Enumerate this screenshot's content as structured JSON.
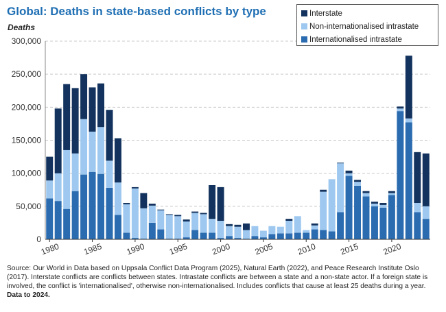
{
  "chart_data": {
    "type": "bar",
    "stacked": true,
    "title": "Global: Deaths in state-based conflicts by type",
    "ylabel": "Deaths",
    "xlabel": "",
    "ylim": [
      0,
      300000
    ],
    "yticks": [
      0,
      50000,
      100000,
      150000,
      200000,
      250000,
      300000
    ],
    "ytick_labels": [
      "0",
      "50,000",
      "100,000",
      "150,000",
      "200,000",
      "250,000",
      "300,000"
    ],
    "xticks": [
      1980,
      1985,
      1990,
      1995,
      2000,
      2005,
      2010,
      2015,
      2020
    ],
    "xtick_labels": [
      "1980",
      "1985",
      "1990",
      "1995",
      "2000",
      "2005",
      "2010",
      "2015",
      "2020"
    ],
    "legend_position": "top-right",
    "categories": [
      1980,
      1981,
      1982,
      1983,
      1984,
      1985,
      1986,
      1987,
      1988,
      1989,
      1990,
      1991,
      1992,
      1993,
      1994,
      1995,
      1996,
      1997,
      1998,
      1999,
      2000,
      2001,
      2002,
      2003,
      2004,
      2005,
      2006,
      2007,
      2008,
      2009,
      2010,
      2011,
      2012,
      2013,
      2014,
      2015,
      2016,
      2017,
      2018,
      2019,
      2020,
      2021,
      2022,
      2023,
      2024
    ],
    "series": [
      {
        "name": "Internationalised intrastate",
        "color": "#2b6cb0",
        "values": [
          62000,
          58000,
          46000,
          73000,
          98000,
          102000,
          99000,
          78000,
          37000,
          10000,
          2000,
          1000,
          25000,
          15000,
          1000,
          1000,
          3000,
          14000,
          10000,
          10000,
          2000,
          5000,
          2000,
          1000,
          5000,
          3000,
          8000,
          9000,
          9000,
          10000,
          10000,
          15000,
          14000,
          12000,
          41000,
          96000,
          81000,
          65000,
          50000,
          48000,
          67000,
          194000,
          177000,
          41000,
          31000
        ]
      },
      {
        "name": "Non-internationalised intrastate",
        "color": "#9ec8ef",
        "values": [
          27000,
          42000,
          89000,
          57000,
          84000,
          61000,
          71000,
          41000,
          49000,
          43000,
          75000,
          46000,
          26000,
          29000,
          36000,
          34000,
          24000,
          26000,
          28000,
          21000,
          26000,
          15000,
          17000,
          13000,
          15000,
          10000,
          12000,
          10000,
          19000,
          25000,
          4000,
          6000,
          58000,
          79000,
          74000,
          4000,
          6000,
          5000,
          4000,
          4000,
          3000,
          4000,
          6000,
          14000,
          19000
        ]
      },
      {
        "name": "Interstate",
        "color": "#13335e",
        "values": [
          36000,
          98000,
          100000,
          99000,
          68000,
          67000,
          66000,
          77000,
          67000,
          2000,
          2000,
          23000,
          3000,
          1000,
          1000,
          2000,
          3000,
          2000,
          2000,
          51000,
          51000,
          3000,
          3000,
          10000,
          0,
          0,
          0,
          0,
          3000,
          0,
          0,
          3000,
          3000,
          0,
          1000,
          4000,
          3000,
          3000,
          3000,
          3000,
          3000,
          3000,
          95000,
          77000,
          80000
        ]
      }
    ]
  },
  "legend": {
    "items": [
      {
        "label": "Interstate",
        "color": "#13335e"
      },
      {
        "label": "Non-internationalised intrastate",
        "color": "#9ec8ef"
      },
      {
        "label": "Internationalised intrastate",
        "color": "#2b6cb0"
      }
    ]
  },
  "source": {
    "text": "Source: Our World in Data based on Uppsala Conflict Data Program (2025), Natural Earth (2022), and Peace Research Institute Oslo (2017). Interstate conflicts are conflicts between states. Intrastate conflicts are between a state and a non-state actor. If a foreign state is involved, the conflict is 'internationalised', otherwise non-internationalised. Includes conflicts that cause at least 25 deaths during a year.",
    "bold_text": "Data to 2024."
  }
}
